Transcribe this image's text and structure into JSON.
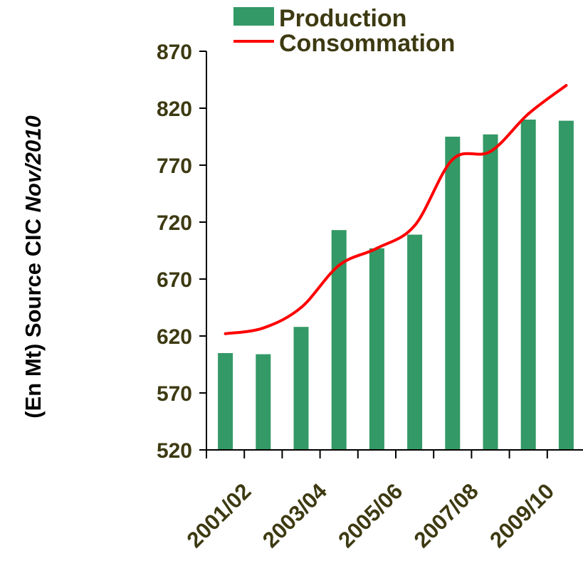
{
  "chart_data": {
    "type": "bar",
    "ylabel_parts": [
      "(En Mt) Source CIC ",
      "Nov/2010"
    ],
    "ylim": [
      520,
      870
    ],
    "yticks": [
      "520",
      "570",
      "620",
      "670",
      "720",
      "770",
      "820",
      "870"
    ],
    "x_tick_labels": [
      "2001/02",
      "2003/04",
      "2005/06",
      "2007/08",
      "2009/10"
    ],
    "grid": false,
    "legend_position": "top",
    "series": [
      {
        "name": "Production",
        "kind": "bar",
        "color": "#339966",
        "values": [
          605,
          604,
          628,
          713,
          697,
          709,
          795,
          797,
          810,
          809
        ]
      },
      {
        "name": "Consommation",
        "kind": "line",
        "color": "#ff0000",
        "values": [
          622,
          627,
          645,
          682,
          697,
          717,
          775,
          782,
          815,
          840
        ]
      }
    ]
  }
}
